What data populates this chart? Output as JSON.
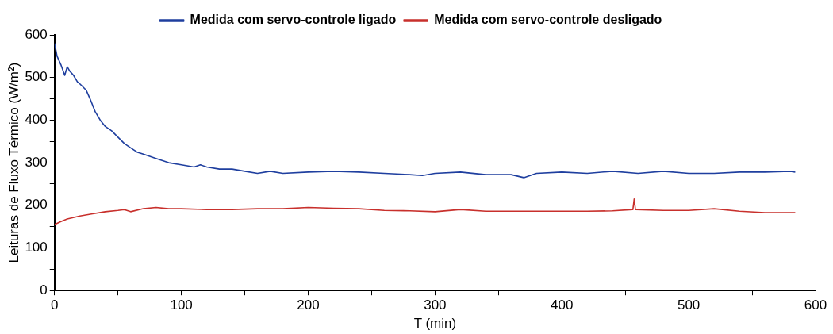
{
  "chart_data": {
    "type": "line",
    "xlabel": "T (min)",
    "ylabel": "Leituras de Fluxo Térmico (W/m²)",
    "xlim": [
      0,
      600
    ],
    "ylim": [
      0,
      600
    ],
    "xticks": [
      0,
      {
        "value": 50,
        "label": null
      },
      100,
      {
        "value": 150,
        "label": null
      },
      200,
      {
        "value": 250,
        "label": null
      },
      300,
      {
        "value": 350,
        "label": null
      },
      400,
      {
        "value": 450,
        "label": null
      },
      500,
      {
        "value": 550,
        "label": null
      },
      600
    ],
    "yticks": [
      0,
      {
        "value": 50,
        "label": null
      },
      100,
      {
        "value": 150,
        "label": null
      },
      200,
      {
        "value": 250,
        "label": null
      },
      300,
      {
        "value": 350,
        "label": null
      },
      400,
      {
        "value": 450,
        "label": null
      },
      500,
      {
        "value": 550,
        "label": null
      },
      600
    ],
    "grid": false,
    "legend": "top",
    "marker": "none",
    "line_style": "solid",
    "series": [
      {
        "name": "Medida com servo-controle ligado",
        "color": "#1f3f9f",
        "x": [
          0,
          2,
          5,
          8,
          10,
          12,
          15,
          18,
          20,
          25,
          28,
          32,
          36,
          40,
          45,
          50,
          55,
          60,
          65,
          70,
          80,
          90,
          100,
          110,
          115,
          120,
          130,
          140,
          150,
          160,
          170,
          180,
          200,
          220,
          240,
          260,
          280,
          290,
          300,
          320,
          340,
          360,
          370,
          380,
          400,
          420,
          440,
          460,
          480,
          500,
          520,
          540,
          560,
          580,
          584
        ],
        "values": [
          580,
          550,
          530,
          505,
          525,
          515,
          505,
          490,
          485,
          470,
          450,
          420,
          400,
          385,
          375,
          360,
          345,
          335,
          325,
          320,
          310,
          300,
          295,
          290,
          295,
          290,
          285,
          285,
          280,
          275,
          280,
          275,
          278,
          280,
          278,
          275,
          272,
          270,
          275,
          278,
          272,
          272,
          265,
          275,
          278,
          275,
          280,
          275,
          280,
          275,
          275,
          278,
          278,
          280,
          278
        ]
      },
      {
        "name": "Medida com servo-controle desligado",
        "color": "#c8302c",
        "x": [
          0,
          5,
          10,
          20,
          30,
          40,
          50,
          55,
          60,
          70,
          80,
          90,
          100,
          120,
          140,
          160,
          180,
          200,
          220,
          240,
          260,
          280,
          300,
          320,
          340,
          360,
          380,
          400,
          420,
          440,
          456,
          457,
          458,
          480,
          500,
          520,
          540,
          560,
          584
        ],
        "values": [
          155,
          162,
          168,
          175,
          180,
          185,
          188,
          190,
          185,
          192,
          195,
          192,
          192,
          190,
          190,
          192,
          192,
          195,
          193,
          192,
          188,
          187,
          185,
          190,
          186,
          186,
          186,
          186,
          186,
          187,
          190,
          215,
          190,
          188,
          188,
          192,
          186,
          183,
          183
        ]
      }
    ]
  }
}
